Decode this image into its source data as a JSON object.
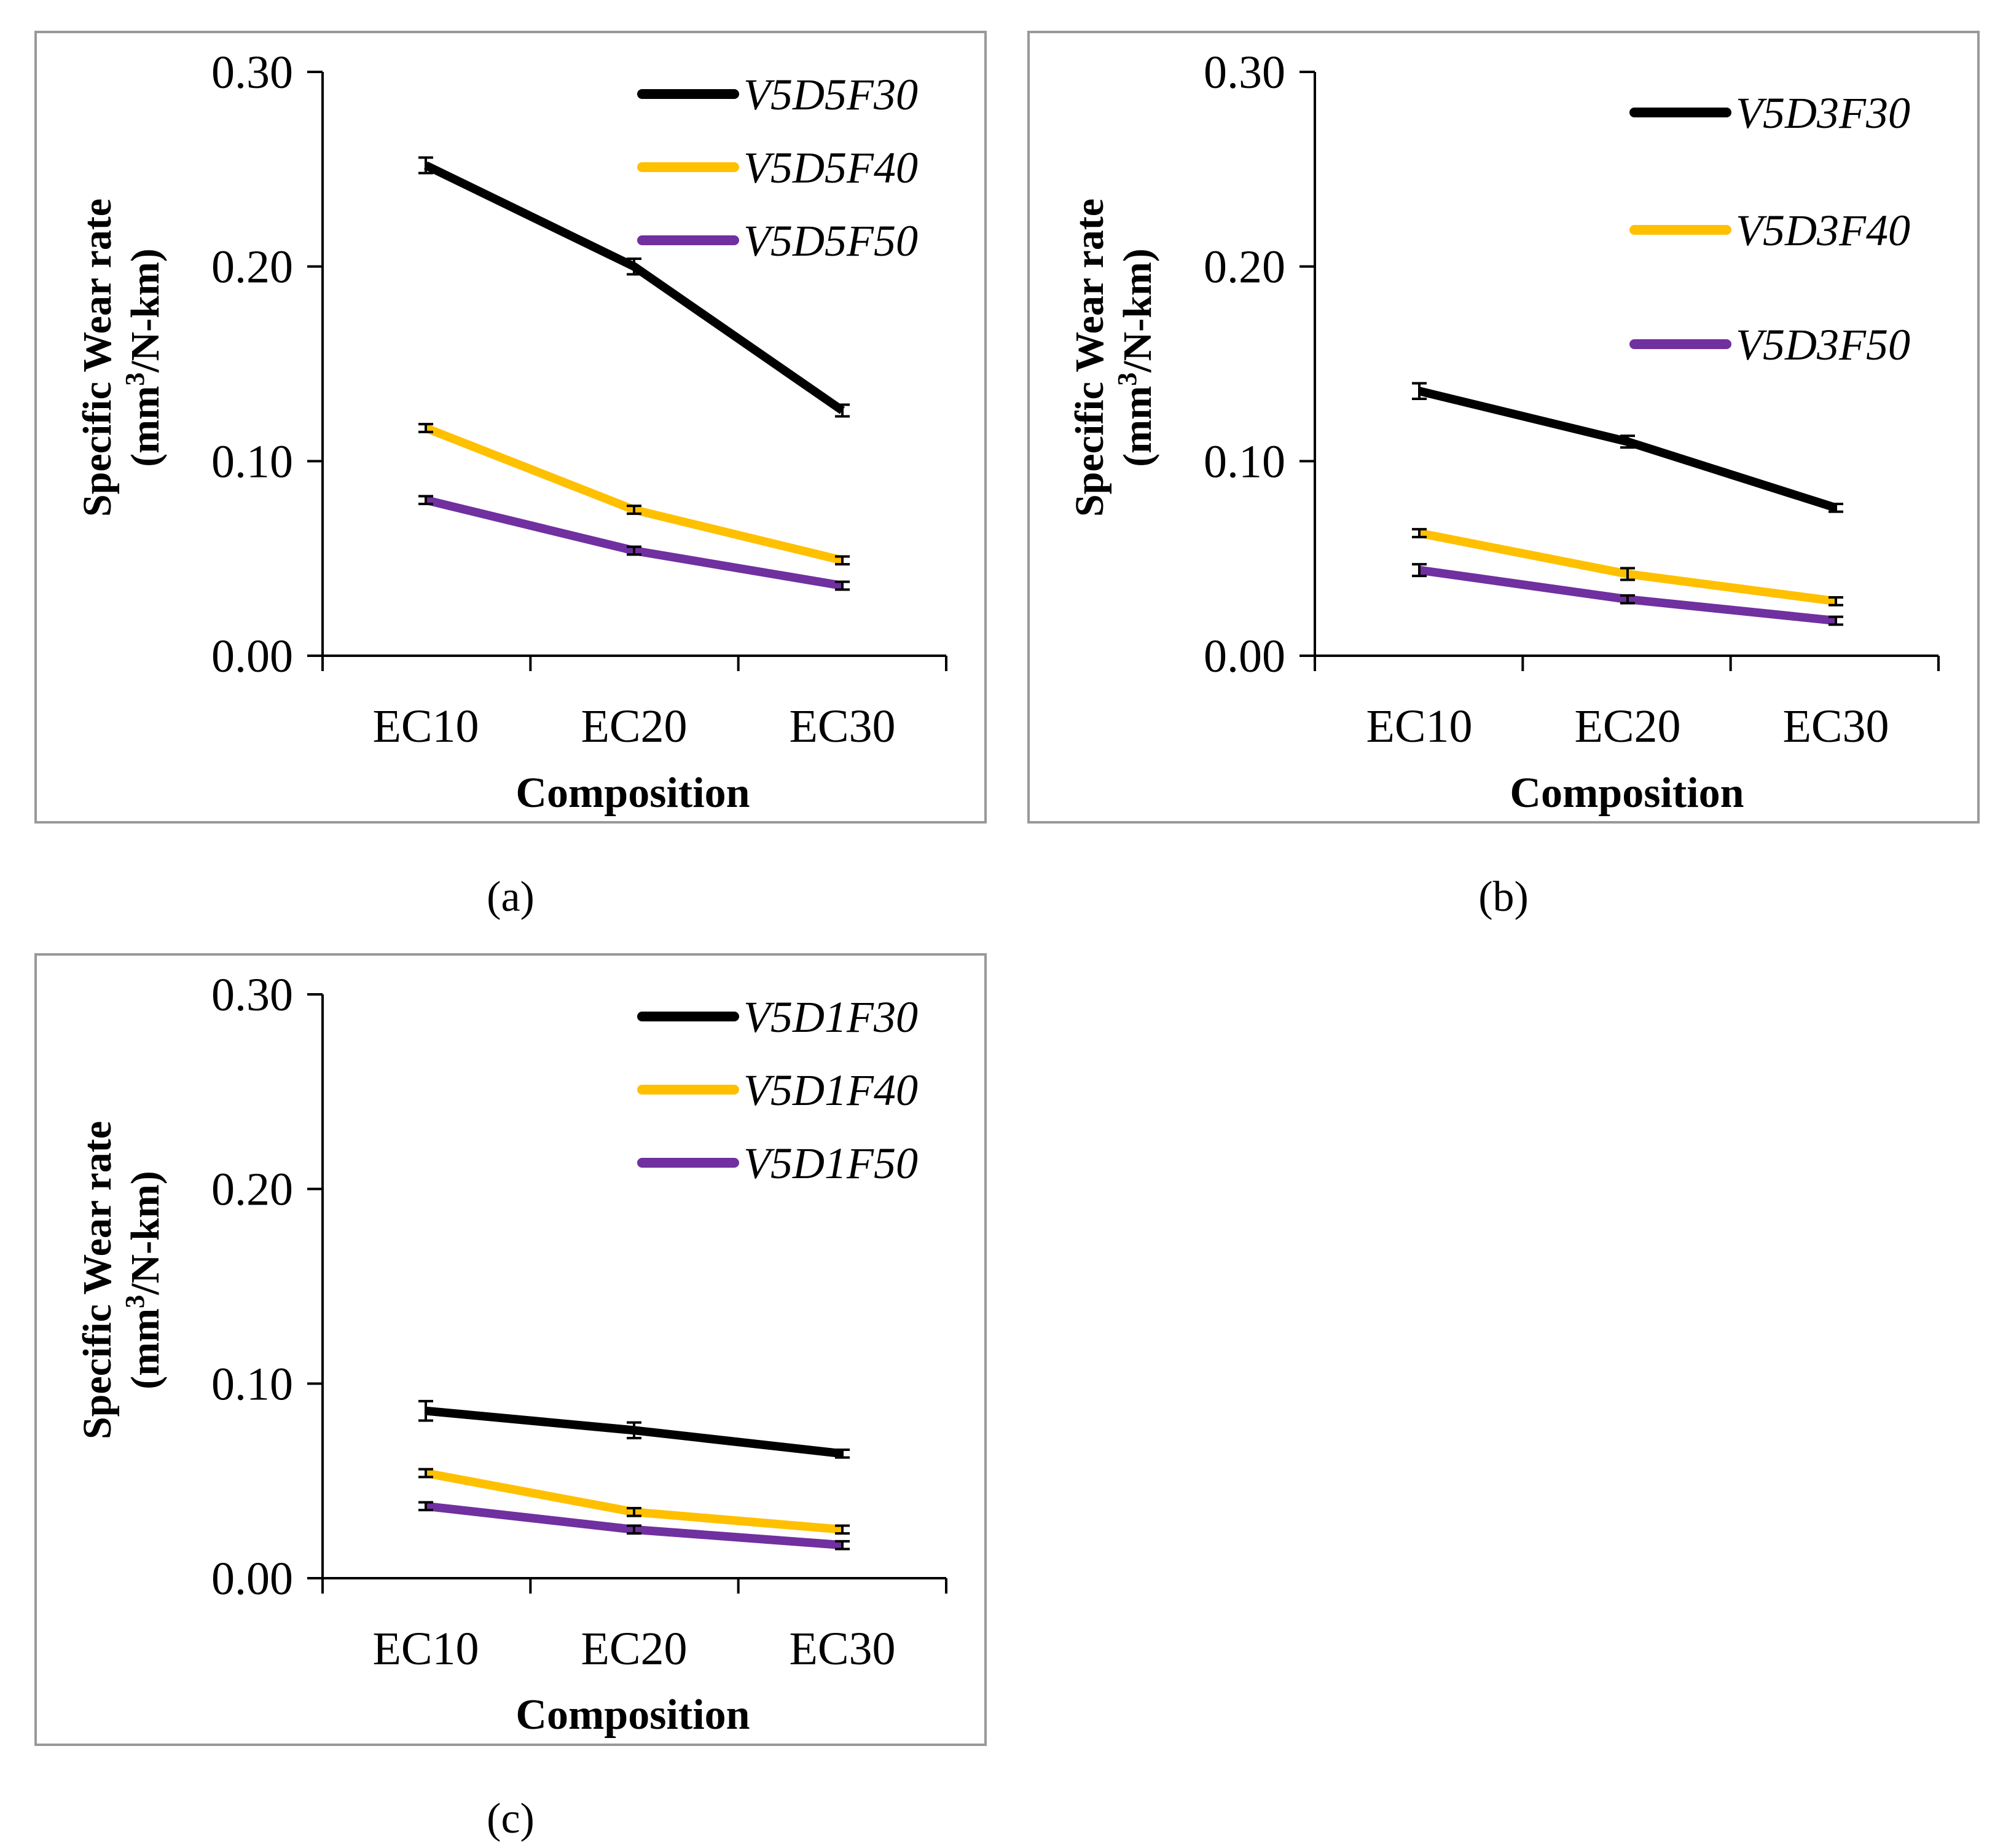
{
  "figure": {
    "captions": [
      "(a)",
      "(b)",
      "(c)"
    ]
  },
  "chart_data": [
    {
      "type": "line",
      "panel": "(a)",
      "categories": [
        "EC10",
        "EC20",
        "EC30"
      ],
      "xlabel": "Composition",
      "ylabel_line1": "Specific Wear rate",
      "ylabel_line2_prefix": "(mm",
      "ylabel_line2_sup": "3",
      "ylabel_line2_suffix": "/N-km)",
      "ylim": [
        0,
        0.3
      ],
      "yticks": [
        "0.00",
        "0.10",
        "0.20",
        "0.30"
      ],
      "legend_position": "top-right",
      "series": [
        {
          "name": "V5D5F30",
          "color": "#000000",
          "values": [
            0.252,
            0.2,
            0.126
          ],
          "errors": [
            0.004,
            0.004,
            0.003
          ]
        },
        {
          "name": "V5D5F40",
          "color": "#FFC000",
          "values": [
            0.117,
            0.075,
            0.049
          ],
          "errors": [
            0.002,
            0.002,
            0.002
          ]
        },
        {
          "name": "V5D5F50",
          "color": "#7030A0",
          "values": [
            0.08,
            0.054,
            0.036
          ],
          "errors": [
            0.002,
            0.002,
            0.002
          ]
        }
      ]
    },
    {
      "type": "line",
      "panel": "(b)",
      "categories": [
        "EC10",
        "EC20",
        "EC30"
      ],
      "xlabel": "Composition",
      "ylabel_line1": "Specific Wear rate",
      "ylabel_line2_prefix": "(mm",
      "ylabel_line2_sup": "3",
      "ylabel_line2_suffix": "/N-km)",
      "ylim": [
        0,
        0.3
      ],
      "yticks": [
        "0.00",
        "0.10",
        "0.20",
        "0.30"
      ],
      "legend_position": "top-right",
      "series": [
        {
          "name": "V5D3F30",
          "color": "#000000",
          "values": [
            0.136,
            0.11,
            0.076
          ],
          "errors": [
            0.004,
            0.003,
            0.002
          ]
        },
        {
          "name": "V5D3F40",
          "color": "#FFC000",
          "values": [
            0.063,
            0.042,
            0.028
          ],
          "errors": [
            0.002,
            0.003,
            0.002
          ]
        },
        {
          "name": "V5D3F50",
          "color": "#7030A0",
          "values": [
            0.044,
            0.029,
            0.018
          ],
          "errors": [
            0.003,
            0.002,
            0.002
          ]
        }
      ]
    },
    {
      "type": "line",
      "panel": "(c)",
      "categories": [
        "EC10",
        "EC20",
        "EC30"
      ],
      "xlabel": "Composition",
      "ylabel_line1": "Specific Wear rate",
      "ylabel_line2_prefix": "(mm",
      "ylabel_line2_sup": "3",
      "ylabel_line2_suffix": "/N-km)",
      "ylim": [
        0,
        0.3
      ],
      "yticks": [
        "0.00",
        "0.10",
        "0.20",
        "0.30"
      ],
      "legend_position": "top-right",
      "series": [
        {
          "name": "V5D1F30",
          "color": "#000000",
          "values": [
            0.086,
            0.076,
            0.064
          ],
          "errors": [
            0.005,
            0.004,
            0.002
          ]
        },
        {
          "name": "V5D1F40",
          "color": "#FFC000",
          "values": [
            0.054,
            0.034,
            0.025
          ],
          "errors": [
            0.002,
            0.002,
            0.002
          ]
        },
        {
          "name": "V5D1F50",
          "color": "#7030A0",
          "values": [
            0.037,
            0.025,
            0.017
          ],
          "errors": [
            0.002,
            0.002,
            0.002
          ]
        }
      ]
    }
  ]
}
